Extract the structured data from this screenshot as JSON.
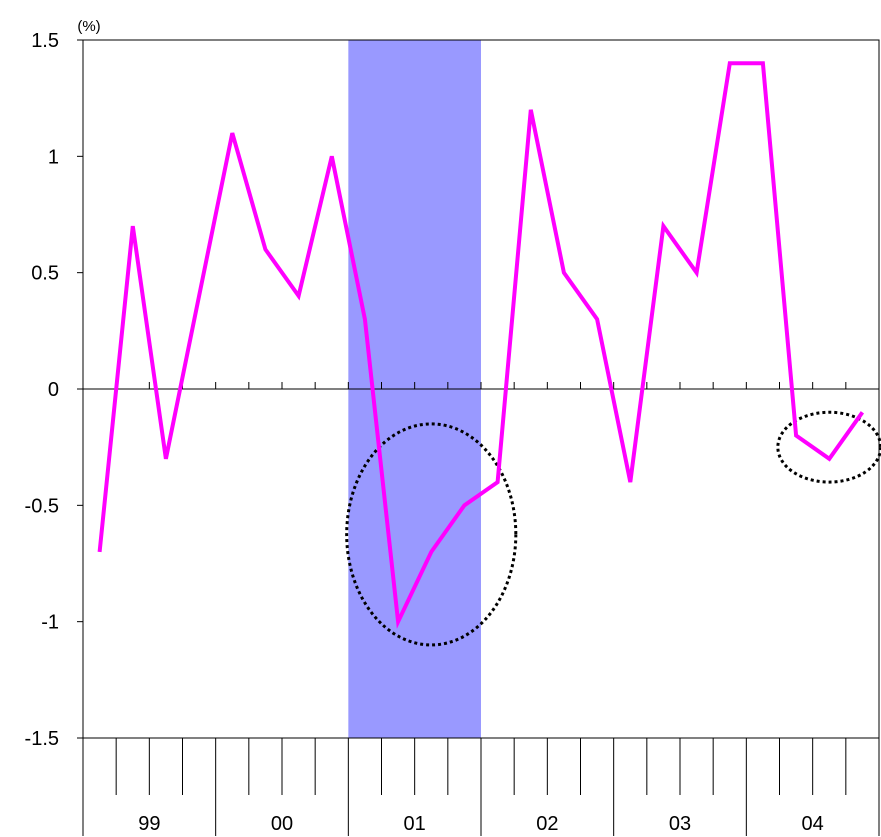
{
  "chart_data": {
    "type": "line",
    "unit_label": "(%)",
    "x_groups": [
      "99",
      "00",
      "01",
      "02",
      "03",
      "04"
    ],
    "quarters_per_group": 4,
    "x": [
      "99Q1",
      "99Q2",
      "99Q3",
      "99Q4",
      "00Q1",
      "00Q2",
      "00Q3",
      "00Q4",
      "01Q1",
      "01Q2",
      "01Q3",
      "01Q4",
      "02Q1",
      "02Q2",
      "02Q3",
      "02Q4",
      "03Q1",
      "03Q2",
      "03Q3",
      "03Q4",
      "04Q1",
      "04Q2",
      "04Q3",
      "04Q4"
    ],
    "series": [
      {
        "values": [
          -0.7,
          0.7,
          -0.3,
          0.4,
          1.1,
          0.6,
          0.4,
          1.0,
          0.3,
          -1.0,
          -0.7,
          -0.5,
          -0.4,
          1.2,
          0.5,
          0.3,
          -0.4,
          0.7,
          0.5,
          1.4,
          1.4,
          -0.2,
          -0.3,
          -0.1
        ],
        "color": "#ff00ff"
      }
    ],
    "y_ticks": [
      "1.5",
      "1",
      "0.5",
      "0",
      "-0.5",
      "-1",
      "-1.5"
    ],
    "ylim": [
      -1.5,
      1.5
    ],
    "shaded_region": {
      "from": "01Q1",
      "to": "01Q4",
      "color": "#9999ff"
    },
    "highlight_ellipses": [
      {
        "from": "01Q1",
        "to": "02Q1",
        "y_range": [
          -1.1,
          -0.15
        ]
      },
      {
        "from": "04Q2",
        "to": "04Q4",
        "y_range": [
          -0.4,
          -0.1
        ]
      }
    ],
    "grid": false,
    "legend": "none"
  }
}
